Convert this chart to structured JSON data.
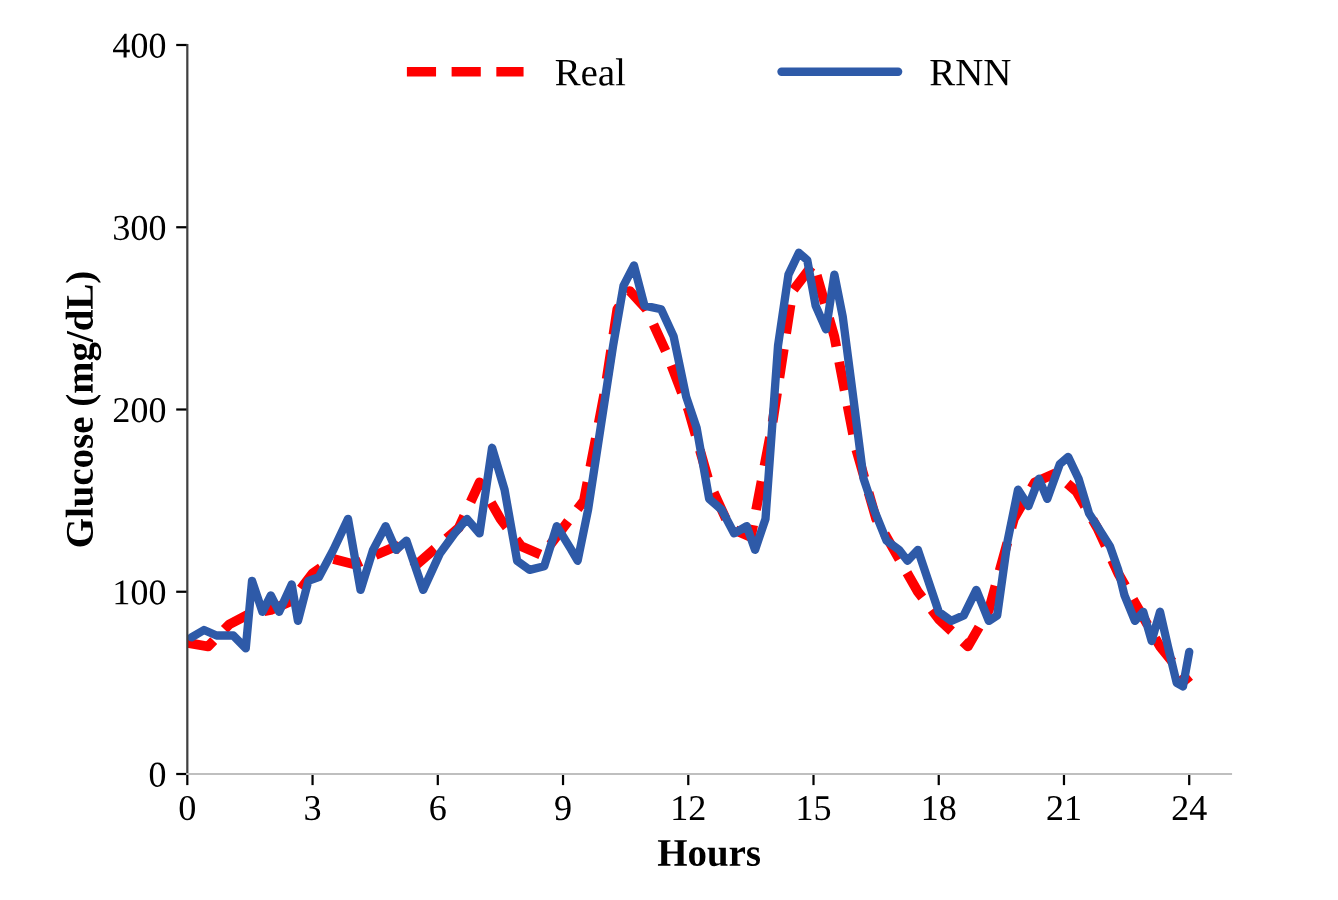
{
  "chart_data": {
    "type": "line",
    "xlabel": "Hours",
    "ylabel": "Glucose (mg/dL)",
    "xlim": [
      0,
      25
    ],
    "xticks": [
      0,
      3,
      6,
      9,
      12,
      15,
      18,
      21,
      24
    ],
    "ylim": [
      0,
      400
    ],
    "yticks": [
      0,
      100,
      200,
      300,
      400
    ],
    "grid": false,
    "legend": "top",
    "marker": "none",
    "series": [
      {
        "name": "Real",
        "color": "#ff0000",
        "line_style": "dashed",
        "x": [
          0,
          0.5,
          1,
          1.5,
          2,
          2.5,
          3,
          3.5,
          4,
          4.5,
          5,
          5.5,
          6,
          6.5,
          7,
          7.5,
          8,
          8.5,
          9,
          9.5,
          10,
          10.3,
          10.6,
          11,
          11.5,
          12,
          12.5,
          13,
          13.5,
          14,
          14.5,
          15,
          15.5,
          16,
          16.5,
          17,
          17.5,
          18,
          18.7,
          19.2,
          19.8,
          20.3,
          20.8,
          21.3,
          21.8,
          22.3,
          22.8,
          23.3,
          24
        ],
        "values": [
          72,
          70,
          82,
          88,
          90,
          95,
          110,
          118,
          115,
          120,
          125,
          115,
          125,
          135,
          160,
          140,
          125,
          120,
          135,
          150,
          210,
          255,
          265,
          255,
          230,
          200,
          160,
          135,
          130,
          190,
          265,
          280,
          240,
          180,
          140,
          120,
          100,
          85,
          70,
          90,
          140,
          160,
          165,
          155,
          135,
          110,
          90,
          70,
          50
        ]
      },
      {
        "name": "RNN",
        "color": "#2e5aa8",
        "line_style": "solid",
        "x": [
          0.1,
          0.4,
          0.7,
          1.1,
          1.4,
          1.55,
          1.8,
          2.0,
          2.2,
          2.5,
          2.65,
          2.9,
          3.15,
          3.5,
          3.85,
          4.15,
          4.45,
          4.75,
          5.0,
          5.25,
          5.65,
          6.05,
          6.4,
          6.7,
          7.0,
          7.3,
          7.6,
          7.9,
          8.2,
          8.55,
          8.85,
          9.2,
          9.35,
          9.6,
          9.9,
          10.2,
          10.45,
          10.7,
          10.95,
          11.35,
          11.65,
          11.95,
          12.2,
          12.5,
          12.8,
          13.1,
          13.4,
          13.6,
          13.85,
          14.15,
          14.4,
          14.65,
          14.85,
          15.05,
          15.3,
          15.5,
          15.7,
          15.95,
          16.2,
          16.45,
          16.75,
          17.05,
          17.25,
          17.5,
          17.75,
          18.0,
          18.3,
          18.6,
          18.9,
          19.2,
          19.4,
          19.65,
          19.9,
          20.15,
          20.4,
          20.6,
          20.9,
          21.1,
          21.35,
          21.6,
          21.85,
          22.1,
          22.3,
          22.45,
          22.7,
          22.9,
          23.1,
          23.3,
          23.5,
          23.7,
          23.85,
          24.0
        ],
        "values": [
          75,
          79,
          76,
          76,
          69,
          106,
          89,
          98,
          89,
          104,
          84,
          106,
          108,
          123,
          140,
          101,
          123,
          136,
          123,
          128,
          101,
          121,
          132,
          140,
          132,
          179,
          156,
          117,
          112,
          114,
          136,
          123,
          117,
          145,
          190,
          235,
          268,
          279,
          257,
          255,
          240,
          207,
          190,
          151,
          145,
          132,
          136,
          123,
          140,
          235,
          274,
          286,
          282,
          257,
          244,
          274,
          251,
          207,
          162,
          145,
          128,
          123,
          117,
          123,
          106,
          89,
          84,
          87,
          101,
          84,
          87,
          128,
          156,
          147,
          162,
          151,
          170,
          174,
          162,
          143,
          134,
          125,
          112,
          98,
          84,
          89,
          73,
          89,
          69,
          50,
          48,
          67
        ]
      }
    ]
  }
}
